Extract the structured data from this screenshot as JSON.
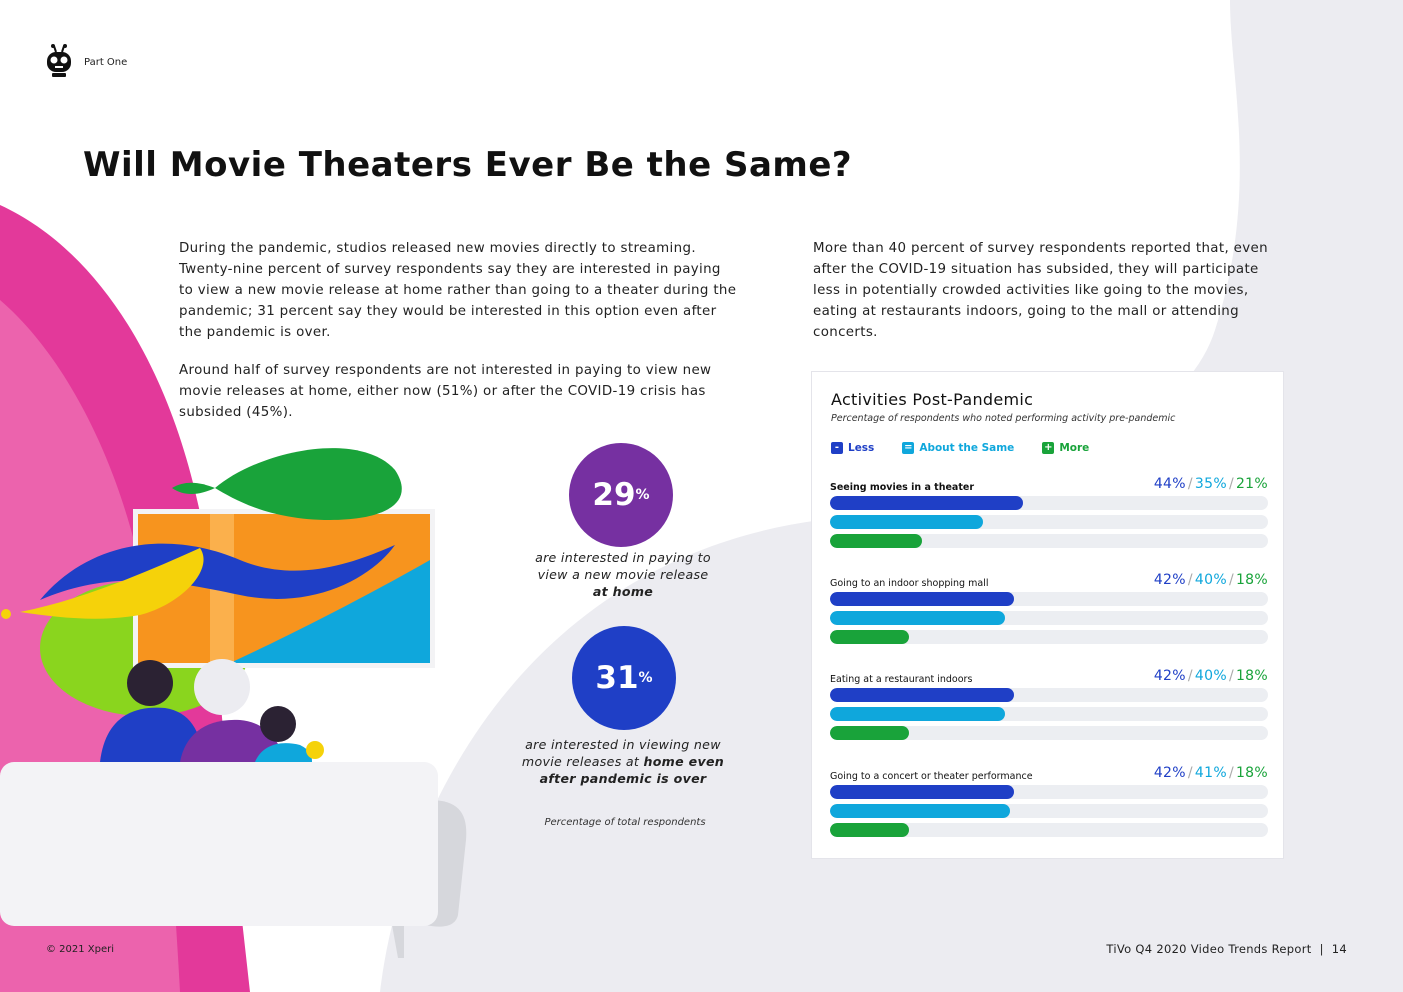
{
  "header": {
    "section": "Part One",
    "logo_icon": "tivo-robot-icon"
  },
  "title": "Will Movie Theaters Ever Be the Same?",
  "paragraphs": {
    "p1": "During the pandemic, studios released new movies directly to streaming. Twenty-nine percent of survey respondents say they are interested in paying to view a new movie release at home rather than going to a theater during the pandemic; 31 percent say they would be interested in this option even after the pandemic is over.",
    "p2": "Around half of survey respondents are not interested in paying to view new movie releases at home, either now (51%) or after the COVID-19 crisis has subsided (45%).",
    "p3": "More than 40 percent of survey respondents reported that, even after the COVID-19 situation has subsided, they will participate less in potentially crowded activities like going to the movies, eating at restaurants indoors, going to the mall or attending concerts."
  },
  "stats": [
    {
      "value": "29",
      "unit": "%",
      "caption_a": "are interested in paying to view a new movie release",
      "caption_b": "at home",
      "color": "#7630a1"
    },
    {
      "value": "31",
      "unit": "%",
      "caption_a": "are interested in viewing new movie releases at",
      "caption_b": "home even after pandemic is over",
      "color": "#1f3fc6"
    }
  ],
  "footnote": "Percentage of total respondents",
  "chart_data": {
    "type": "bar",
    "title": "Activities Post-Pandemic",
    "subtitle": "Percentage of respondents who noted performing activity pre-pandemic",
    "legend": [
      {
        "symbol": "-",
        "label": "Less",
        "color": "#1f3fc6"
      },
      {
        "symbol": "=",
        "label": "About the Same",
        "color": "#0fa7dc"
      },
      {
        "symbol": "+",
        "label": "More",
        "color": "#19a33a"
      }
    ],
    "categories": [
      "Seeing movies in a theater",
      "Going to an indoor shopping mall",
      "Eating at a restaurant indoors",
      "Going to a concert or theater performance"
    ],
    "series": [
      {
        "name": "Less",
        "values": [
          44,
          42,
          42,
          42
        ]
      },
      {
        "name": "About the Same",
        "values": [
          35,
          40,
          40,
          41
        ]
      },
      {
        "name": "More",
        "values": [
          21,
          18,
          18,
          18
        ]
      }
    ],
    "value_labels": [
      [
        "44%",
        "35%",
        "21%"
      ],
      [
        "42%",
        "40%",
        "18%"
      ],
      [
        "42%",
        "40%",
        "18%"
      ],
      [
        "42%",
        "41%",
        "18%"
      ]
    ],
    "xlim": [
      0,
      100
    ]
  },
  "footer": {
    "copyright": "© 2021 Xperi",
    "report": "TiVo Q4 2020 Video Trends Report",
    "page": "14"
  }
}
